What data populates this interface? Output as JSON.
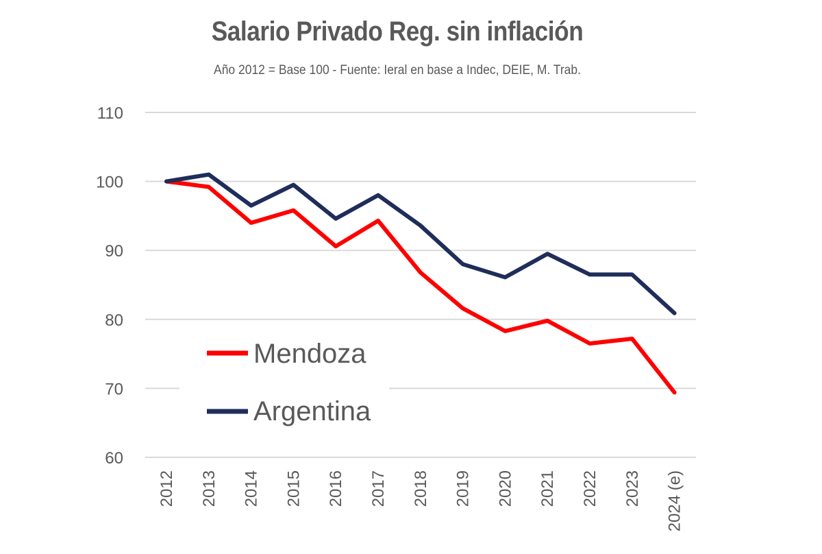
{
  "chart_data": {
    "type": "line",
    "title": "Salario Privado Reg. sin inflación",
    "subtitle": "Año 2012 = Base 100 - Fuente: Ieral en base a Indec, DEIE, M. Trab.",
    "categories": [
      "2012",
      "2013",
      "2014",
      "2015",
      "2016",
      "2017",
      "2018",
      "2019",
      "2020",
      "2021",
      "2022",
      "2023",
      "2024 (e)"
    ],
    "series": [
      {
        "name": "Mendoza",
        "color": "#ff0000",
        "values": [
          100,
          99.2,
          94,
          95.8,
          90.6,
          94.3,
          86.8,
          81.6,
          78.3,
          79.8,
          76.5,
          77.2,
          69.4
        ]
      },
      {
        "name": "Argentina",
        "color": "#1f2d5a",
        "values": [
          100,
          101,
          96.5,
          99.5,
          94.6,
          98,
          93.6,
          88,
          86.1,
          89.5,
          86.5,
          86.5,
          80.9
        ]
      }
    ],
    "yticks": [
      "60",
      "70",
      "80",
      "90",
      "100",
      "110"
    ],
    "ylim": [
      60,
      110
    ],
    "grid": true,
    "legend_position": "lower-left"
  }
}
